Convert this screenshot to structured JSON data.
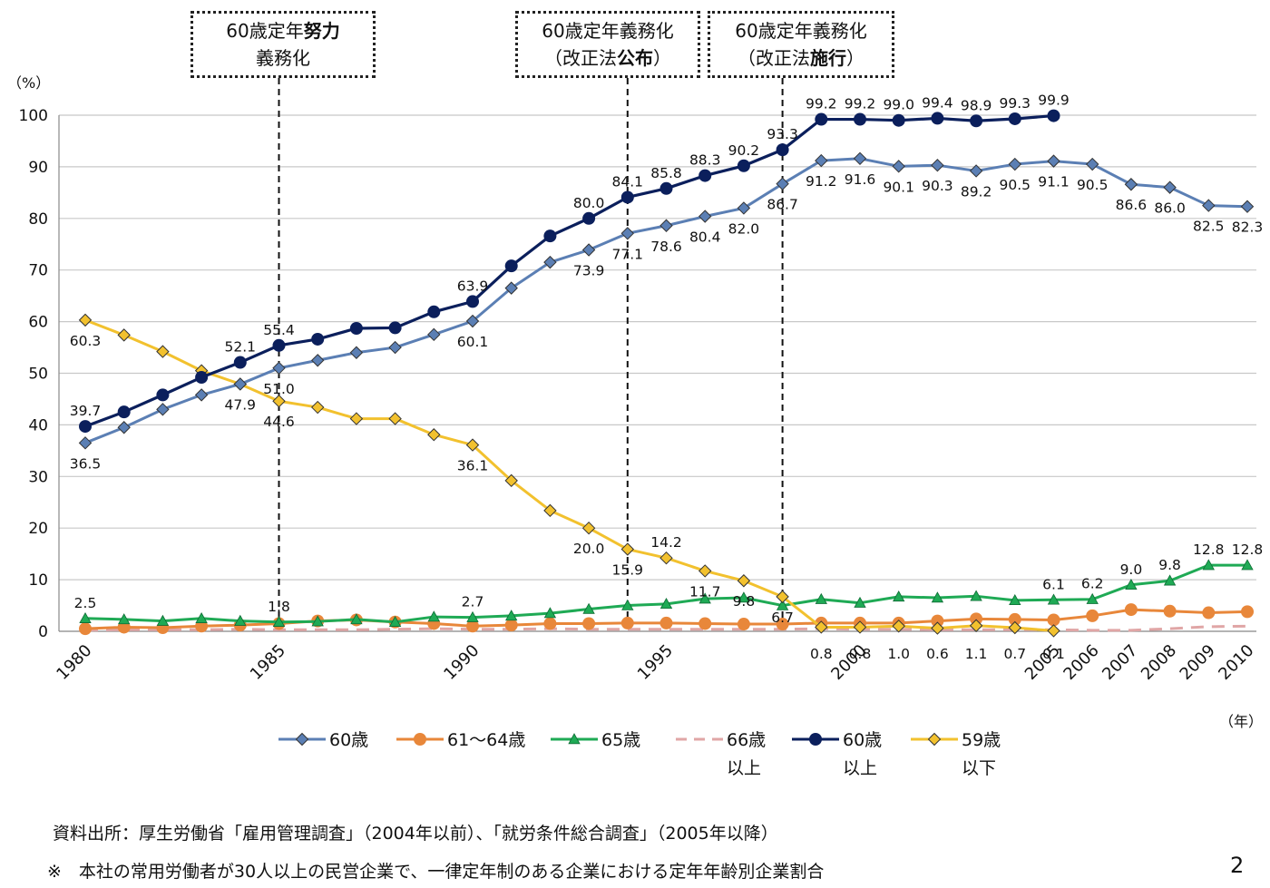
{
  "callouts": [
    {
      "id": "c1",
      "line1_pre": "60歳定年",
      "line1_bold": "努力",
      "line2_pre": "義務化",
      "line2_bold": "",
      "line2_post": ""
    },
    {
      "id": "c2",
      "line1_pre": "60歳定年義務化",
      "line1_bold": "",
      "line2_pre": "（改正法",
      "line2_bold": "公布",
      "line2_post": "）"
    },
    {
      "id": "c3",
      "line1_pre": "60歳定年義務化",
      "line1_bold": "",
      "line2_pre": "（改正法",
      "line2_bold": "施行",
      "line2_post": "）"
    }
  ],
  "y_unit": "（%）",
  "x_unit": "（年）",
  "source_note": "資料出所：厚生労働省「雇用管理調査」（2004年以前）、「就労条件総合調査」（2005年以降）",
  "footnote": "※　本社の常用労働者が30人以上の民営企業で、一律定年制のある企業における定年年齢別企業割合",
  "page_number": "2",
  "colors": {
    "s60": "#5b7fb4",
    "s61_64": "#e8873a",
    "s65": "#1faa55",
    "s66": "#e0a6a6",
    "s60plus": "#0b1f5c",
    "s59": "#f2c12e"
  },
  "chart_data": {
    "type": "line",
    "ylim": [
      0,
      100
    ],
    "yticks": [
      0,
      10,
      20,
      30,
      40,
      50,
      60,
      70,
      80,
      90,
      100
    ],
    "x": [
      1980,
      1981,
      1982,
      1983,
      1984,
      1985,
      1986,
      1987,
      1988,
      1989,
      1990,
      1991,
      1992,
      1993,
      1994,
      1995,
      1996,
      1997,
      1998,
      1999,
      2000,
      2001,
      2002,
      2003,
      2004,
      2005,
      2006,
      2007,
      2008,
      2009,
      2010
    ],
    "x_tick_labels": [
      "1980",
      "1985",
      "1990",
      "1995",
      "2000",
      "2005",
      "2006",
      "2007",
      "2008",
      "2009",
      "2010"
    ],
    "vlines": [
      1985,
      1994,
      1998
    ],
    "legend": [
      {
        "key": "s60",
        "label_lines": [
          "60歳"
        ]
      },
      {
        "key": "s61_64",
        "label_lines": [
          "61～64歳"
        ]
      },
      {
        "key": "s65",
        "label_lines": [
          "65歳"
        ]
      },
      {
        "key": "s66",
        "label_lines": [
          "66歳",
          "以上"
        ]
      },
      {
        "key": "s60plus",
        "label_lines": [
          "60歳",
          "以上"
        ]
      },
      {
        "key": "s59",
        "label_lines": [
          "59歳",
          "以下"
        ]
      }
    ],
    "series": [
      {
        "key": "s60",
        "name": "60歳",
        "marker": "diamond",
        "values": [
          36.5,
          39.5,
          43.0,
          45.8,
          47.9,
          51.0,
          52.5,
          54.0,
          55.0,
          57.5,
          60.1,
          66.5,
          71.5,
          73.9,
          77.1,
          78.6,
          80.4,
          82.0,
          86.7,
          91.2,
          91.6,
          90.1,
          90.3,
          89.2,
          90.5,
          91.1,
          90.5,
          86.6,
          86.0,
          82.5,
          82.3
        ]
      },
      {
        "key": "s61_64",
        "name": "61～64歳",
        "marker": "circle",
        "values": [
          0.5,
          0.8,
          0.7,
          1.0,
          1.2,
          1.5,
          2.0,
          2.2,
          1.8,
          1.5,
          1.0,
          1.2,
          1.5,
          1.5,
          1.6,
          1.6,
          1.5,
          1.4,
          1.4,
          1.6,
          1.6,
          1.6,
          2.0,
          2.4,
          2.3,
          2.2,
          3.0,
          4.2,
          3.9,
          3.6,
          3.8
        ]
      },
      {
        "key": "s65",
        "name": "65歳",
        "marker": "triangle",
        "values": [
          2.5,
          2.3,
          2.0,
          2.5,
          2.0,
          1.8,
          1.9,
          2.3,
          1.8,
          2.8,
          2.7,
          3.0,
          3.5,
          4.3,
          5.0,
          5.3,
          6.3,
          6.5,
          5.0,
          6.2,
          5.5,
          6.7,
          6.5,
          6.8,
          6.0,
          6.1,
          6.2,
          9.0,
          9.8,
          12.8,
          12.8
        ]
      },
      {
        "key": "s66",
        "name": "66歳以上",
        "marker": "none",
        "dashed": true,
        "values": [
          0.2,
          0.3,
          0.3,
          0.3,
          0.4,
          0.3,
          0.3,
          0.3,
          0.4,
          0.5,
          0.4,
          0.4,
          0.5,
          0.4,
          0.4,
          0.4,
          0.4,
          0.4,
          0.4,
          0.5,
          0.4,
          0.4,
          0.3,
          0.3,
          0.3,
          0.3,
          0.2,
          0.2,
          0.5,
          0.9,
          1.0
        ]
      },
      {
        "key": "s60plus",
        "name": "60歳以上",
        "marker": "circle",
        "values": [
          39.7,
          42.5,
          45.8,
          49.2,
          52.1,
          55.4,
          56.6,
          58.7,
          58.8,
          61.9,
          63.9,
          70.8,
          76.6,
          80.0,
          84.1,
          85.8,
          88.3,
          90.2,
          93.3,
          99.2,
          99.2,
          99.0,
          99.4,
          98.9,
          99.3,
          99.9,
          null,
          null,
          null,
          null,
          null
        ]
      },
      {
        "key": "s59",
        "name": "59歳以下",
        "marker": "diamond",
        "values": [
          60.3,
          57.4,
          54.2,
          50.5,
          47.9,
          44.6,
          43.4,
          41.2,
          41.2,
          38.1,
          36.1,
          29.2,
          23.4,
          20.0,
          15.9,
          14.2,
          11.7,
          9.8,
          6.7,
          0.8,
          0.8,
          1.0,
          0.6,
          1.1,
          0.7,
          0.1,
          null,
          null,
          null,
          null,
          null
        ]
      }
    ],
    "data_labels": [
      {
        "series": "s60plus",
        "year": 1980,
        "text": "39.7",
        "pos": "above"
      },
      {
        "series": "s60plus",
        "year": 1984,
        "text": "52.1",
        "pos": "above"
      },
      {
        "series": "s60plus",
        "year": 1985,
        "text": "55.4",
        "pos": "above"
      },
      {
        "series": "s60plus",
        "year": 1990,
        "text": "63.9",
        "pos": "above"
      },
      {
        "series": "s60plus",
        "year": 1993,
        "text": "80.0",
        "pos": "above"
      },
      {
        "series": "s60plus",
        "year": 1994,
        "text": "84.1",
        "pos": "above"
      },
      {
        "series": "s60plus",
        "year": 1995,
        "text": "85.8",
        "pos": "above"
      },
      {
        "series": "s60plus",
        "year": 1996,
        "text": "88.3",
        "pos": "above"
      },
      {
        "series": "s60plus",
        "year": 1997,
        "text": "90.2",
        "pos": "above"
      },
      {
        "series": "s60plus",
        "year": 1998,
        "text": "93.3",
        "pos": "above"
      },
      {
        "series": "s60plus",
        "year": 1999,
        "text": "99.2",
        "pos": "above"
      },
      {
        "series": "s60plus",
        "year": 2000,
        "text": "99.2",
        "pos": "above"
      },
      {
        "series": "s60plus",
        "year": 2001,
        "text": "99.0",
        "pos": "above"
      },
      {
        "series": "s60plus",
        "year": 2002,
        "text": "99.4",
        "pos": "above"
      },
      {
        "series": "s60plus",
        "year": 2003,
        "text": "98.9",
        "pos": "above"
      },
      {
        "series": "s60plus",
        "year": 2004,
        "text": "99.3",
        "pos": "above"
      },
      {
        "series": "s60plus",
        "year": 2005,
        "text": "99.9",
        "pos": "above"
      },
      {
        "series": "s60",
        "year": 1980,
        "text": "36.5",
        "pos": "below"
      },
      {
        "series": "s60",
        "year": 1984,
        "text": "47.9",
        "pos": "below"
      },
      {
        "series": "s60",
        "year": 1985,
        "text": "51.0",
        "pos": "below"
      },
      {
        "series": "s60",
        "year": 1990,
        "text": "60.1",
        "pos": "below"
      },
      {
        "series": "s60",
        "year": 1993,
        "text": "73.9",
        "pos": "below"
      },
      {
        "series": "s60",
        "year": 1994,
        "text": "77.1",
        "pos": "below"
      },
      {
        "series": "s60",
        "year": 1995,
        "text": "78.6",
        "pos": "below"
      },
      {
        "series": "s60",
        "year": 1996,
        "text": "80.4",
        "pos": "below"
      },
      {
        "series": "s60",
        "year": 1997,
        "text": "82.0",
        "pos": "below"
      },
      {
        "series": "s60",
        "year": 1998,
        "text": "86.7",
        "pos": "below"
      },
      {
        "series": "s60",
        "year": 1999,
        "text": "91.2",
        "pos": "below"
      },
      {
        "series": "s60",
        "year": 2000,
        "text": "91.6",
        "pos": "below"
      },
      {
        "series": "s60",
        "year": 2001,
        "text": "90.1",
        "pos": "below"
      },
      {
        "series": "s60",
        "year": 2002,
        "text": "90.3",
        "pos": "below"
      },
      {
        "series": "s60",
        "year": 2003,
        "text": "89.2",
        "pos": "below"
      },
      {
        "series": "s60",
        "year": 2004,
        "text": "90.5",
        "pos": "below"
      },
      {
        "series": "s60",
        "year": 2005,
        "text": "91.1",
        "pos": "below"
      },
      {
        "series": "s60",
        "year": 2006,
        "text": "90.5",
        "pos": "below"
      },
      {
        "series": "s60",
        "year": 2007,
        "text": "86.6",
        "pos": "below"
      },
      {
        "series": "s60",
        "year": 2008,
        "text": "86.0",
        "pos": "below"
      },
      {
        "series": "s60",
        "year": 2009,
        "text": "82.5",
        "pos": "below"
      },
      {
        "series": "s60",
        "year": 2010,
        "text": "82.3",
        "pos": "below"
      },
      {
        "series": "s59",
        "year": 1980,
        "text": "60.3",
        "pos": "below"
      },
      {
        "series": "s59",
        "year": 1985,
        "text": "44.6",
        "pos": "below"
      },
      {
        "series": "s59",
        "year": 1990,
        "text": "36.1",
        "pos": "below"
      },
      {
        "series": "s59",
        "year": 1993,
        "text": "20.0",
        "pos": "below"
      },
      {
        "series": "s59",
        "year": 1994,
        "text": "15.9",
        "pos": "below"
      },
      {
        "series": "s59",
        "year": 1995,
        "text": "14.2",
        "pos": "above"
      },
      {
        "series": "s59",
        "year": 1996,
        "text": "11.7",
        "pos": "below"
      },
      {
        "series": "s59",
        "year": 1997,
        "text": "9.8",
        "pos": "below"
      },
      {
        "series": "s59",
        "year": 1998,
        "text": "6.7",
        "pos": "below"
      },
      {
        "series": "s59",
        "year": 1999,
        "text": "0.8",
        "pos": "bottom"
      },
      {
        "series": "s59",
        "year": 2000,
        "text": "0.8",
        "pos": "bottom"
      },
      {
        "series": "s59",
        "year": 2001,
        "text": "1.0",
        "pos": "bottom"
      },
      {
        "series": "s59",
        "year": 2002,
        "text": "0.6",
        "pos": "bottom"
      },
      {
        "series": "s59",
        "year": 2003,
        "text": "1.1",
        "pos": "bottom"
      },
      {
        "series": "s59",
        "year": 2004,
        "text": "0.7",
        "pos": "bottom"
      },
      {
        "series": "s59",
        "year": 2005,
        "text": "0.1",
        "pos": "bottom"
      },
      {
        "series": "s65",
        "year": 1980,
        "text": "2.5",
        "pos": "above"
      },
      {
        "series": "s65",
        "year": 1985,
        "text": "1.8",
        "pos": "above"
      },
      {
        "series": "s65",
        "year": 1990,
        "text": "2.7",
        "pos": "above"
      },
      {
        "series": "s65",
        "year": 2005,
        "text": "6.1",
        "pos": "above"
      },
      {
        "series": "s65",
        "year": 2006,
        "text": "6.2",
        "pos": "above"
      },
      {
        "series": "s65",
        "year": 2007,
        "text": "9.0",
        "pos": "above"
      },
      {
        "series": "s65",
        "year": 2008,
        "text": "9.8",
        "pos": "above"
      },
      {
        "series": "s65",
        "year": 2009,
        "text": "12.8",
        "pos": "above"
      },
      {
        "series": "s65",
        "year": 2010,
        "text": "12.8",
        "pos": "above"
      }
    ]
  }
}
